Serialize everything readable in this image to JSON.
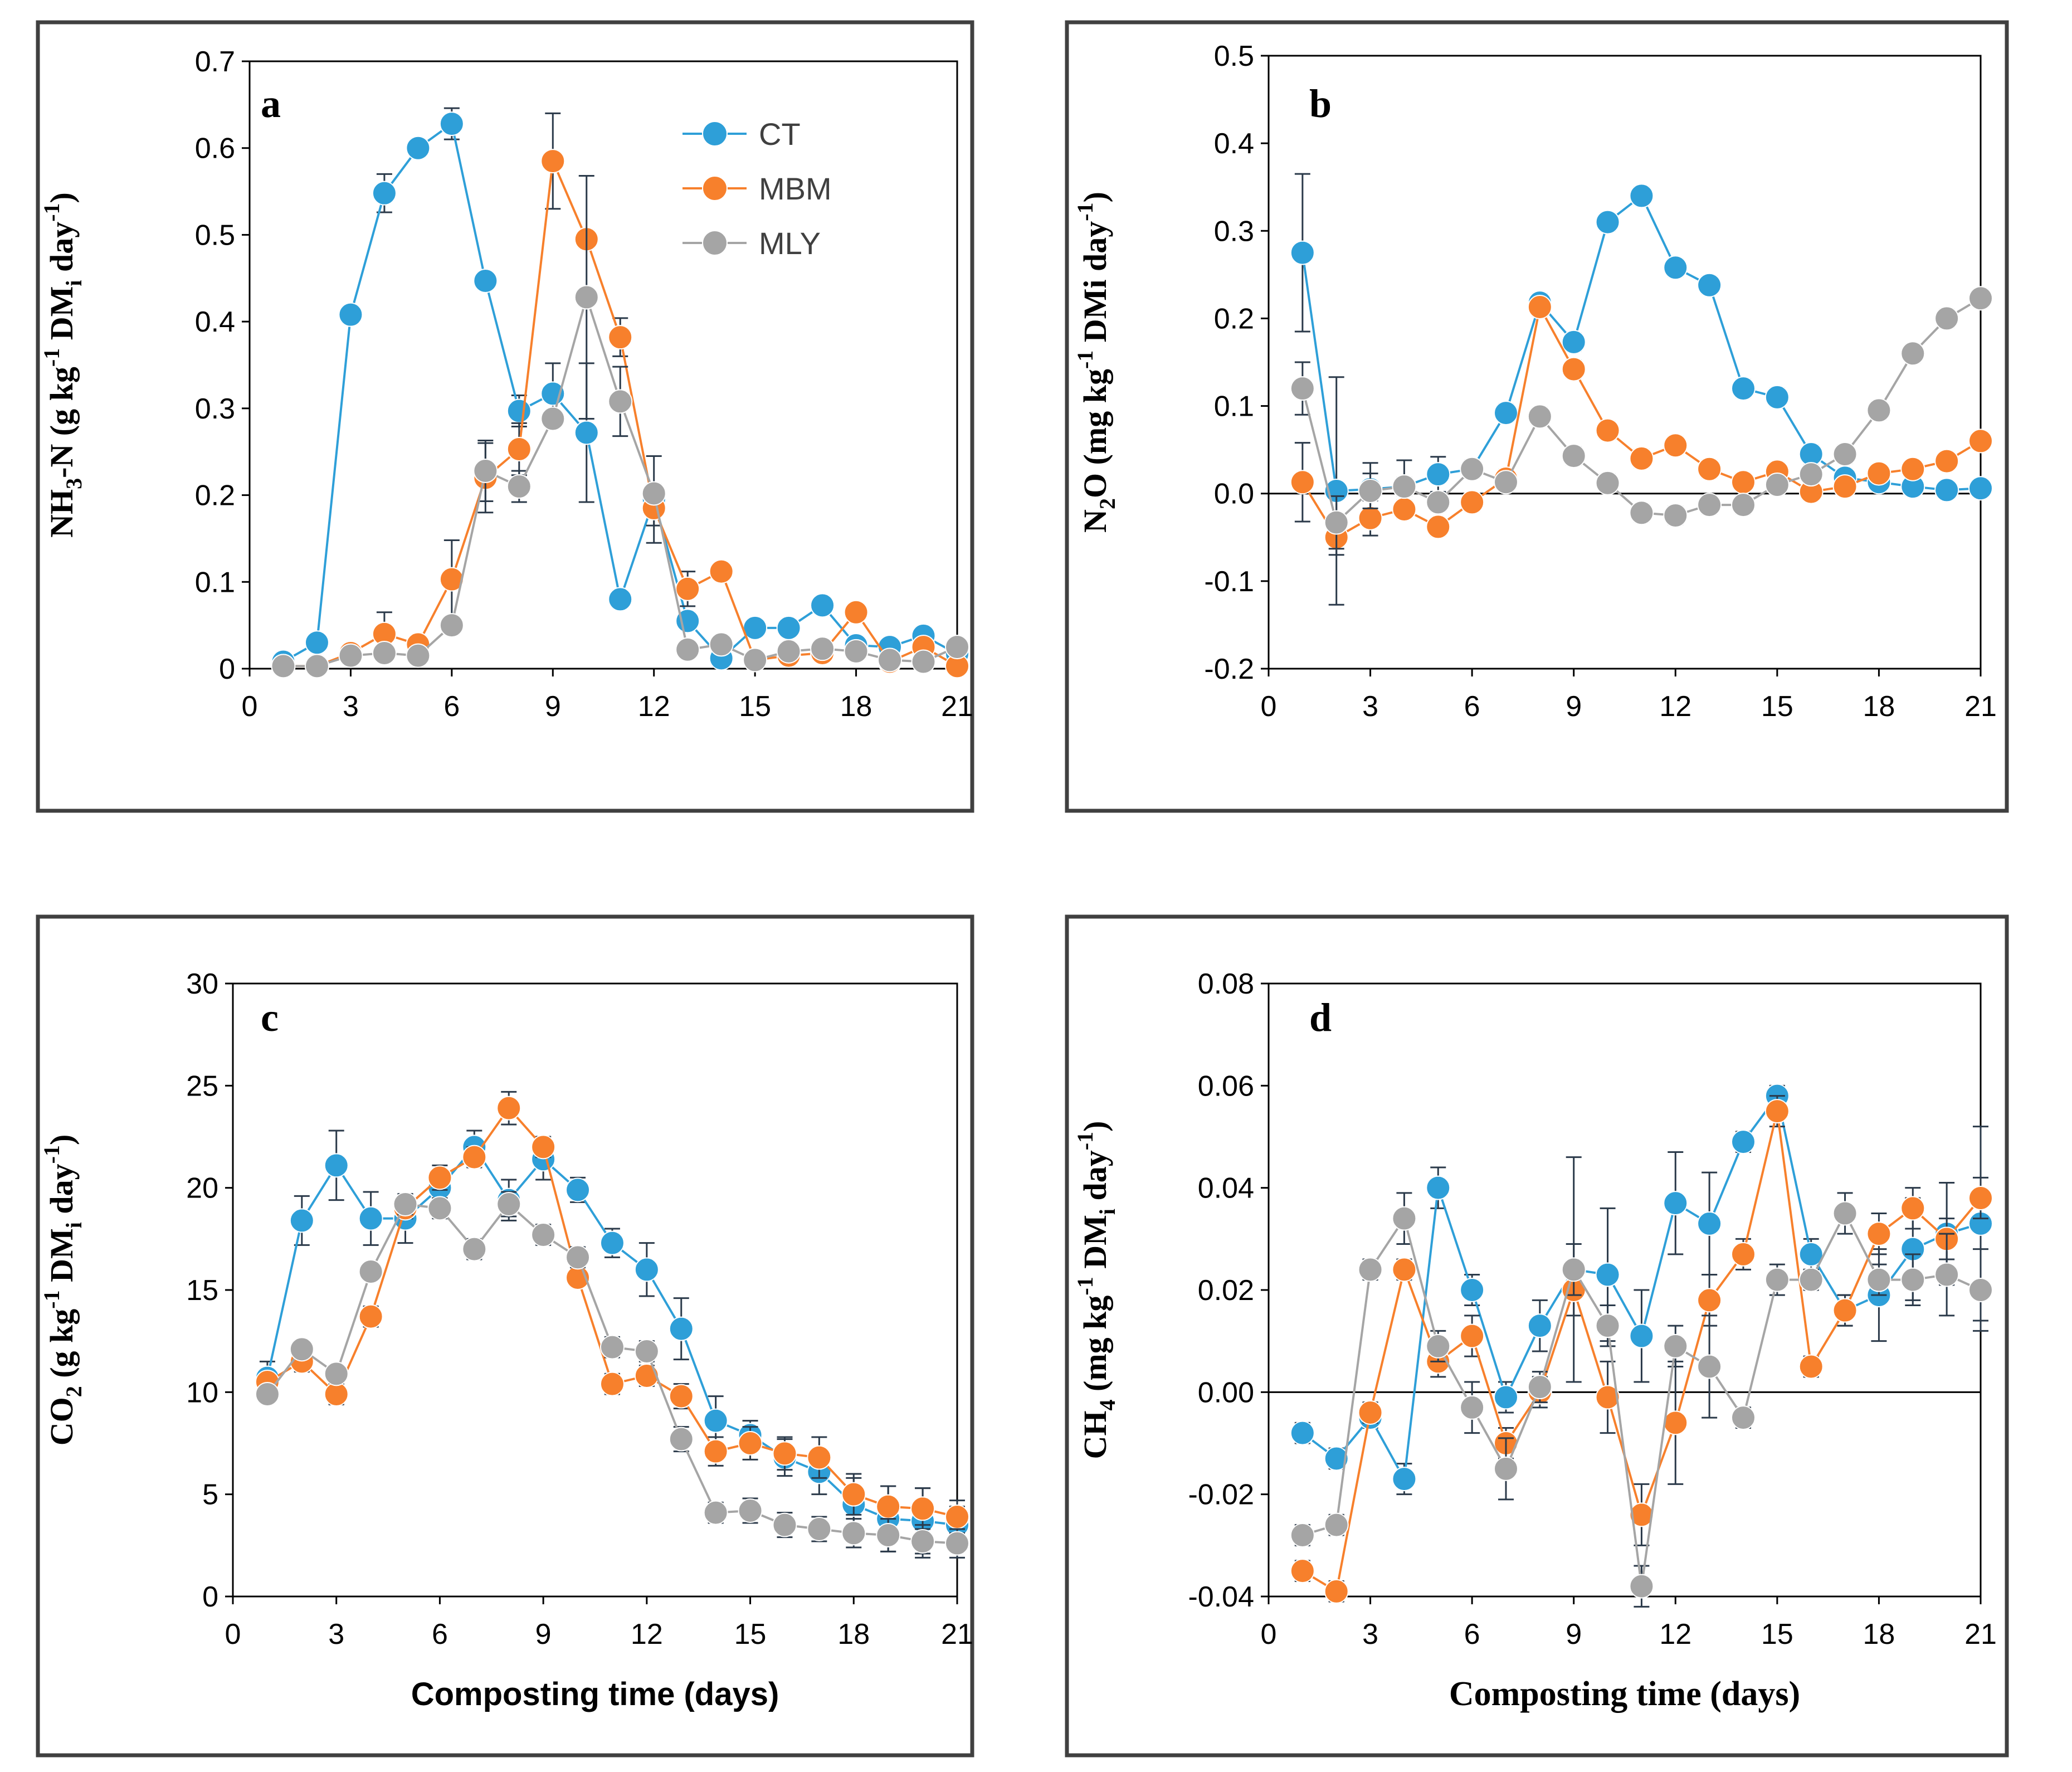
{
  "colors": {
    "CT": "#2e9fd8",
    "MBM": "#f7802c",
    "MLY": "#a5a5a5",
    "errorbar": "#2b3a4a"
  },
  "legend": [
    "CT",
    "MBM",
    "MLY"
  ],
  "chart_data": [
    {
      "type": "line",
      "panel": "a",
      "ylabel": "NH3-N (g kg-1 DMi day-1)",
      "ylabel_parts": {
        "p1": "NH",
        "s1": "3",
        "p2": "-N (g kg",
        "s2": "-1",
        "p3": " DM",
        "s3": "i",
        "p4": " day",
        "s4": "-1",
        "p5": ")"
      },
      "xlabel": "",
      "xlim": [
        0,
        21
      ],
      "xticks": [
        0,
        3,
        6,
        9,
        12,
        15,
        18,
        21
      ],
      "ylim": [
        0,
        0.7
      ],
      "yticks": [
        "0",
        "0.1",
        "0.2",
        "0.3",
        "0.4",
        "0.5",
        "0.6",
        "0.7"
      ],
      "ytick_values": [
        0,
        0.1,
        0.2,
        0.3,
        0.4,
        0.5,
        0.6,
        0.7
      ],
      "x": [
        1,
        2,
        3,
        4,
        5,
        6,
        7,
        8,
        9,
        10,
        11,
        12,
        13,
        14,
        15,
        16,
        17,
        18,
        19,
        20,
        21
      ],
      "series": [
        {
          "name": "CT",
          "values": [
            0.008,
            0.03,
            0.408,
            0.548,
            0.6,
            0.628,
            0.447,
            0.297,
            0.317,
            0.272,
            0.08,
            0.195,
            0.055,
            0.012,
            0.047,
            0.047,
            0.073,
            0.027,
            0.025,
            0.038,
            0.017
          ],
          "errors": [
            0.005,
            0.008,
            0.01,
            0.022,
            0.01,
            0.018,
            0.01,
            0.018,
            0.035,
            0.08,
            0.01,
            0.05,
            0.01,
            0.005,
            0.008,
            0.008,
            0.008,
            0.008,
            0.005,
            0.008,
            0.008
          ]
        },
        {
          "name": "MBM",
          "values": [
            0.003,
            0.003,
            0.018,
            0.04,
            0.028,
            0.103,
            0.22,
            0.253,
            0.585,
            0.495,
            0.382,
            0.185,
            0.092,
            0.112,
            0.01,
            0.015,
            0.018,
            0.065,
            0.008,
            0.025,
            0.003
          ],
          "errors": [
            0.003,
            0.003,
            0.005,
            0.025,
            0.005,
            0.045,
            0.04,
            0.03,
            0.055,
            0.01,
            0.022,
            0.02,
            0.02,
            0.005,
            0.005,
            0.005,
            0.005,
            0.005,
            0.005,
            0.005,
            0.003
          ]
        },
        {
          "name": "MLY",
          "values": [
            0.003,
            0.003,
            0.015,
            0.018,
            0.015,
            0.05,
            0.228,
            0.21,
            0.288,
            0.428,
            0.308,
            0.202,
            0.022,
            0.028,
            0.01,
            0.02,
            0.023,
            0.02,
            0.01,
            0.008,
            0.025
          ],
          "errors": [
            0.003,
            0.003,
            0.005,
            0.005,
            0.005,
            0.01,
            0.035,
            0.018,
            0.01,
            0.14,
            0.04,
            0.01,
            0.005,
            0.005,
            0.005,
            0.005,
            0.005,
            0.005,
            0.005,
            0.003,
            0.005
          ]
        }
      ]
    },
    {
      "type": "line",
      "panel": "b",
      "ylabel": "N2O (mg kg-1 DMi day-1)",
      "ylabel_parts": {
        "p1": "N",
        "s1": "2",
        "p2": "O (mg kg",
        "s2": "-1",
        "p3": " DMi day",
        "s3": "-1",
        "p4": ")"
      },
      "xlabel": "",
      "xlim": [
        0,
        21
      ],
      "xticks": [
        0,
        3,
        6,
        9,
        12,
        15,
        18,
        21
      ],
      "ylim": [
        -0.2,
        0.5
      ],
      "yticks": [
        "-0.2",
        "-0.1",
        "0.0",
        "0.1",
        "0.2",
        "0.3",
        "0.4",
        "0.5"
      ],
      "ytick_values": [
        -0.2,
        -0.1,
        0,
        0.1,
        0.2,
        0.3,
        0.4,
        0.5
      ],
      "x": [
        1,
        2,
        3,
        4,
        5,
        6,
        7,
        8,
        9,
        10,
        11,
        12,
        13,
        14,
        15,
        16,
        17,
        18,
        19,
        20,
        21
      ],
      "series": [
        {
          "name": "CT",
          "values": [
            0.275,
            0.003,
            0.005,
            0.008,
            0.022,
            0.028,
            0.092,
            0.218,
            0.173,
            0.31,
            0.34,
            0.258,
            0.238,
            0.12,
            0.11,
            0.045,
            0.018,
            0.013,
            0.008,
            0.004,
            0.006
          ],
          "errors": [
            0.09,
            0.13,
            0.03,
            0.03,
            0.02,
            0.01,
            0.01,
            0.01,
            0.01,
            0.01,
            0.01,
            0.01,
            0.01,
            0.01,
            0.01,
            0.01,
            0.01,
            0.008,
            0.008,
            0.005,
            0.005
          ]
        },
        {
          "name": "MBM",
          "values": [
            0.013,
            -0.05,
            -0.028,
            -0.018,
            -0.038,
            -0.01,
            0.017,
            0.213,
            0.142,
            0.072,
            0.04,
            0.055,
            0.028,
            0.013,
            0.025,
            0.002,
            0.008,
            0.023,
            0.028,
            0.037,
            0.06
          ],
          "errors": [
            0.045,
            0.02,
            0.02,
            0.01,
            0.01,
            0.01,
            0.01,
            0.01,
            0.01,
            0.01,
            0.01,
            0.01,
            0.01,
            0.01,
            0.01,
            0.008,
            0.008,
            0.008,
            0.008,
            0.008,
            0.008
          ]
        },
        {
          "name": "MLY",
          "values": [
            0.12,
            -0.033,
            0.003,
            0.008,
            -0.01,
            0.028,
            0.013,
            0.088,
            0.043,
            0.012,
            -0.022,
            -0.025,
            -0.013,
            -0.013,
            0.01,
            0.022,
            0.045,
            0.095,
            0.16,
            0.2,
            0.223
          ],
          "errors": [
            0.03,
            0.03,
            0.02,
            0.01,
            0.01,
            0.01,
            0.01,
            0.01,
            0.01,
            0.01,
            0.01,
            0.01,
            0.01,
            0.01,
            0.01,
            0.01,
            0.01,
            0.01,
            0.01,
            0.01,
            0.01
          ]
        }
      ]
    },
    {
      "type": "line",
      "panel": "c",
      "ylabel": "CO2 (g kg-1 DMi day-1)",
      "ylabel_parts": {
        "p1": "CO",
        "s1": "2",
        "p2": " (g kg",
        "s2": "-1",
        "p3": " DM",
        "s3": "i",
        "p4": " day",
        "s4": "-1",
        "p5": ")"
      },
      "xlabel": "Composting time (days)",
      "xlim": [
        0,
        21
      ],
      "xticks": [
        0,
        3,
        6,
        9,
        12,
        15,
        18,
        21
      ],
      "ylim": [
        0,
        30
      ],
      "yticks": [
        "0",
        "5",
        "10",
        "15",
        "20",
        "25",
        "30"
      ],
      "ytick_values": [
        0,
        5,
        10,
        15,
        20,
        25,
        30
      ],
      "x": [
        1,
        2,
        3,
        4,
        5,
        6,
        7,
        8,
        9,
        10,
        11,
        12,
        13,
        14,
        15,
        16,
        17,
        18,
        19,
        20,
        21
      ],
      "series": [
        {
          "name": "CT",
          "values": [
            10.7,
            18.4,
            21.1,
            18.5,
            18.5,
            20.0,
            22.0,
            19.4,
            21.4,
            19.9,
            17.3,
            16.0,
            13.1,
            8.6,
            7.9,
            6.8,
            6.1,
            4.5,
            3.8,
            3.7,
            3.5
          ],
          "errors": [
            0.8,
            1.2,
            1.7,
            1.3,
            1.2,
            0.8,
            0.8,
            1.0,
            1.0,
            0.6,
            0.7,
            1.3,
            1.5,
            1.2,
            0.7,
            0.9,
            1.1,
            1.3,
            1.6,
            1.6,
            0.9
          ]
        },
        {
          "name": "MBM",
          "values": [
            10.5,
            11.5,
            9.9,
            13.7,
            19.0,
            20.5,
            21.5,
            23.9,
            22.0,
            15.6,
            10.4,
            10.8,
            9.8,
            7.1,
            7.5,
            7.0,
            6.8,
            5.0,
            4.4,
            4.3,
            3.9
          ],
          "errors": [
            0.4,
            0.5,
            0.5,
            0.5,
            0.5,
            0.6,
            0.5,
            0.8,
            0.5,
            0.4,
            0.5,
            0.5,
            0.6,
            0.7,
            0.8,
            0.8,
            1.0,
            1.0,
            1.0,
            1.0,
            0.8
          ]
        },
        {
          "name": "MLY",
          "values": [
            9.9,
            12.1,
            10.9,
            15.9,
            19.2,
            19.0,
            17.0,
            19.2,
            17.7,
            16.6,
            12.2,
            12.0,
            7.7,
            4.1,
            4.2,
            3.5,
            3.3,
            3.1,
            3.0,
            2.7,
            2.6
          ],
          "errors": [
            0.4,
            0.4,
            0.4,
            0.4,
            0.5,
            0.5,
            0.5,
            0.6,
            0.5,
            0.5,
            0.5,
            0.5,
            0.6,
            0.5,
            0.6,
            0.6,
            0.6,
            0.7,
            0.8,
            0.8,
            0.7
          ]
        }
      ]
    },
    {
      "type": "line",
      "panel": "d",
      "ylabel": "CH4 (mg kg-1 DMi day-1)",
      "ylabel_parts": {
        "p1": "CH",
        "s1": "4",
        "p2": " (mg kg",
        "s2": "-1",
        "p3": " DM",
        "s3": "i",
        "p4": " day",
        "s4": "-1",
        "p5": ")"
      },
      "xlabel": "Composting time (days)",
      "xlim": [
        0,
        21
      ],
      "xticks": [
        0,
        3,
        6,
        9,
        12,
        15,
        18,
        21
      ],
      "ylim": [
        -0.04,
        0.08
      ],
      "yticks": [
        "-0.04",
        "-0.02",
        "0.00",
        "0.02",
        "0.04",
        "0.06",
        "0.08"
      ],
      "ytick_values": [
        -0.04,
        -0.02,
        0,
        0.02,
        0.04,
        0.06,
        0.08
      ],
      "x": [
        1,
        2,
        3,
        4,
        5,
        6,
        7,
        8,
        9,
        10,
        11,
        12,
        13,
        14,
        15,
        16,
        17,
        18,
        19,
        20,
        21
      ],
      "series": [
        {
          "name": "CT",
          "values": [
            -0.008,
            -0.013,
            -0.005,
            -0.017,
            0.04,
            0.02,
            -0.001,
            0.013,
            0.024,
            0.023,
            0.011,
            0.037,
            0.033,
            0.049,
            0.058,
            0.027,
            0.016,
            0.019,
            0.028,
            0.031,
            0.033
          ],
          "errors": [
            0.002,
            0.002,
            0.002,
            0.003,
            0.004,
            0.003,
            0.003,
            0.005,
            0.022,
            0.013,
            0.009,
            0.01,
            0.01,
            0.002,
            0.002,
            0.003,
            0.003,
            0.009,
            0.01,
            0.01,
            0.019
          ]
        },
        {
          "name": "MBM",
          "values": [
            -0.035,
            -0.039,
            -0.004,
            0.024,
            0.006,
            0.011,
            -0.01,
            0.0,
            0.02,
            -0.001,
            -0.024,
            -0.006,
            0.018,
            0.027,
            0.055,
            0.005,
            0.016,
            0.031,
            0.036,
            0.03,
            0.038
          ],
          "errors": [
            0.002,
            0.002,
            0.002,
            0.002,
            0.003,
            0.004,
            0.003,
            0.003,
            0.005,
            0.007,
            0.006,
            0.012,
            0.005,
            0.003,
            0.003,
            0.002,
            0.003,
            0.004,
            0.004,
            0.004,
            0.004
          ]
        },
        {
          "name": "MLY",
          "values": [
            -0.028,
            -0.026,
            0.024,
            0.034,
            0.009,
            -0.003,
            -0.015,
            0.001,
            0.024,
            0.013,
            -0.038,
            0.009,
            0.005,
            -0.005,
            0.022,
            0.022,
            0.035,
            0.022,
            0.022,
            0.023,
            0.02
          ],
          "errors": [
            0.002,
            0.002,
            0.002,
            0.005,
            0.003,
            0.005,
            0.006,
            0.003,
            0.005,
            0.004,
            0.004,
            0.004,
            0.01,
            0.002,
            0.003,
            0.002,
            0.004,
            0.003,
            0.005,
            0.008,
            0.008
          ]
        }
      ]
    }
  ]
}
